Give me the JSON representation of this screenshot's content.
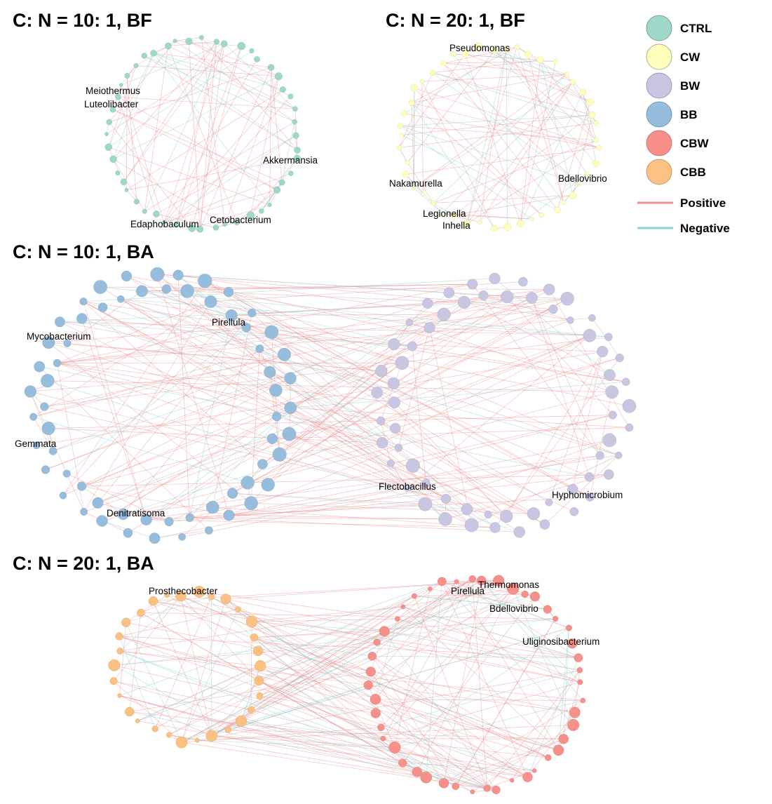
{
  "colors": {
    "CTRL": "#9dd8cb",
    "CW": "#fefebd",
    "BW": "#c9c6e1",
    "BB": "#96bedc",
    "CBW": "#f7908a",
    "CBB": "#fbc182",
    "positive": "#e99090",
    "negative": "#8fd0d3"
  },
  "legend": {
    "groups": [
      "CTRL",
      "CW",
      "BW",
      "BB",
      "CBW",
      "CBB"
    ],
    "edges": [
      {
        "label": "Positive",
        "color_key": "positive"
      },
      {
        "label": "Negative",
        "color_key": "negative"
      }
    ]
  },
  "panels": [
    {
      "id": "bf10",
      "title": "C: N = 10: 1, BF",
      "rings": [
        {
          "group": "CTRL",
          "nodes": 48,
          "size": "small"
        }
      ],
      "edges_positive": 75,
      "edges_negative": 22,
      "labels": [
        "Meiothermus",
        "Luteolibacter",
        "Akkermansia",
        "Edaphobaculum",
        "Cetobacterium"
      ]
    },
    {
      "id": "bf20",
      "title": "C: N = 20: 1, BF",
      "rings": [
        {
          "group": "CW",
          "nodes": 46,
          "size": "small"
        }
      ],
      "edges_positive": 70,
      "edges_negative": 28,
      "labels": [
        "Pseudomonas",
        "Nakamurella",
        "Bdellovibrio",
        "Legionella",
        "Inhella"
      ]
    },
    {
      "id": "ba10",
      "title": "C: N = 10: 1, BA",
      "rings": [
        {
          "group": "BB",
          "nodes": 62,
          "size": "large"
        },
        {
          "group": "BW",
          "nodes": 62,
          "size": "large"
        }
      ],
      "edges_positive": 220,
      "edges_negative": 30,
      "labels": [
        "Mycobacterium",
        "Pirellula",
        "Gemmata",
        "Denitratisoma",
        "Flectobacillus",
        "Hyphomicrobium"
      ]
    },
    {
      "id": "ba20",
      "title": "C: N = 20: 1, BA",
      "rings": [
        {
          "group": "CBB",
          "nodes": 30,
          "size": "medium"
        },
        {
          "group": "CBW",
          "nodes": 46,
          "size": "medium"
        }
      ],
      "edges_positive": 160,
      "edges_negative": 60,
      "labels": [
        "Prosthecobacter",
        "Thermomonas",
        "Pirellula",
        "Bdellovibrio",
        "Uliginosibacterium"
      ]
    }
  ]
}
